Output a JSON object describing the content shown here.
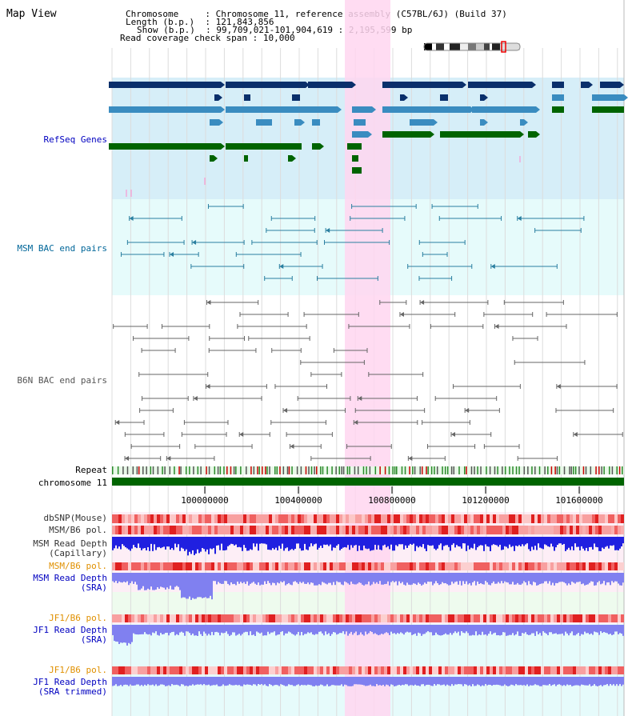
{
  "app_title": "Map View",
  "header": {
    "chromosome_key": "Chromosome",
    "chromosome_value": "Chromosome 11, reference assembly (C57BL/6J) (Build 37)",
    "length_key": "Length (b.p.)",
    "length_value": "121,843,856",
    "show_key": "Show (b.p.)",
    "show_value": "99,709,021-101,904,619 : 2,195,599 bp",
    "coverage_key": "Read coverage check span",
    "coverage_value": "10,000"
  },
  "tracks": {
    "refseq": "RefSeq Genes",
    "msm_bac": "MSM BAC end pairs",
    "b6n_bac": "B6N BAC end pairs",
    "repeat": "Repeat",
    "chromosome": "chromosome 11",
    "dbsnp": "dbSNP(Mouse)",
    "msm_pol_1": "MSM/B6 pol.",
    "msm_depth_cap_1": "MSM Read Depth",
    "msm_depth_cap_2": "(Capillary)",
    "msm_pol_2": "MSM/B6 pol.",
    "msm_depth_sra_1": "MSM Read Depth",
    "msm_depth_sra_2": "(SRA)",
    "jf1_pol_1": "JF1/B6 pol.",
    "jf1_depth_sra_1": "JF1 Read Depth",
    "jf1_depth_sra_2": "(SRA)",
    "jf1_pol_2": "JF1/B6 pol.",
    "jf1_trim_1": "JF1 Read Depth",
    "jf1_trim_2": "(SRA trimmed)"
  },
  "axis_ticks": [
    "100000000",
    "100400000",
    "100800000",
    "101200000",
    "101600000"
  ],
  "colors": {
    "refseq_bg": "#d6eef8",
    "bac_bg": "#e6fbfb",
    "highlight": "#ffd6f0",
    "dark_gene": "#0a2f6b",
    "mid_gene": "#3a8cc0",
    "green_gene": "#006400",
    "msm_line": "#2a7fa0",
    "b6n_line": "#666666",
    "pol_red": "#e63030",
    "depth_blue": "#2020e0",
    "depth_lav": "#8080f0",
    "label_blue": "#0000c0",
    "label_orange": "#e09000",
    "label_teal": "#006699"
  }
}
